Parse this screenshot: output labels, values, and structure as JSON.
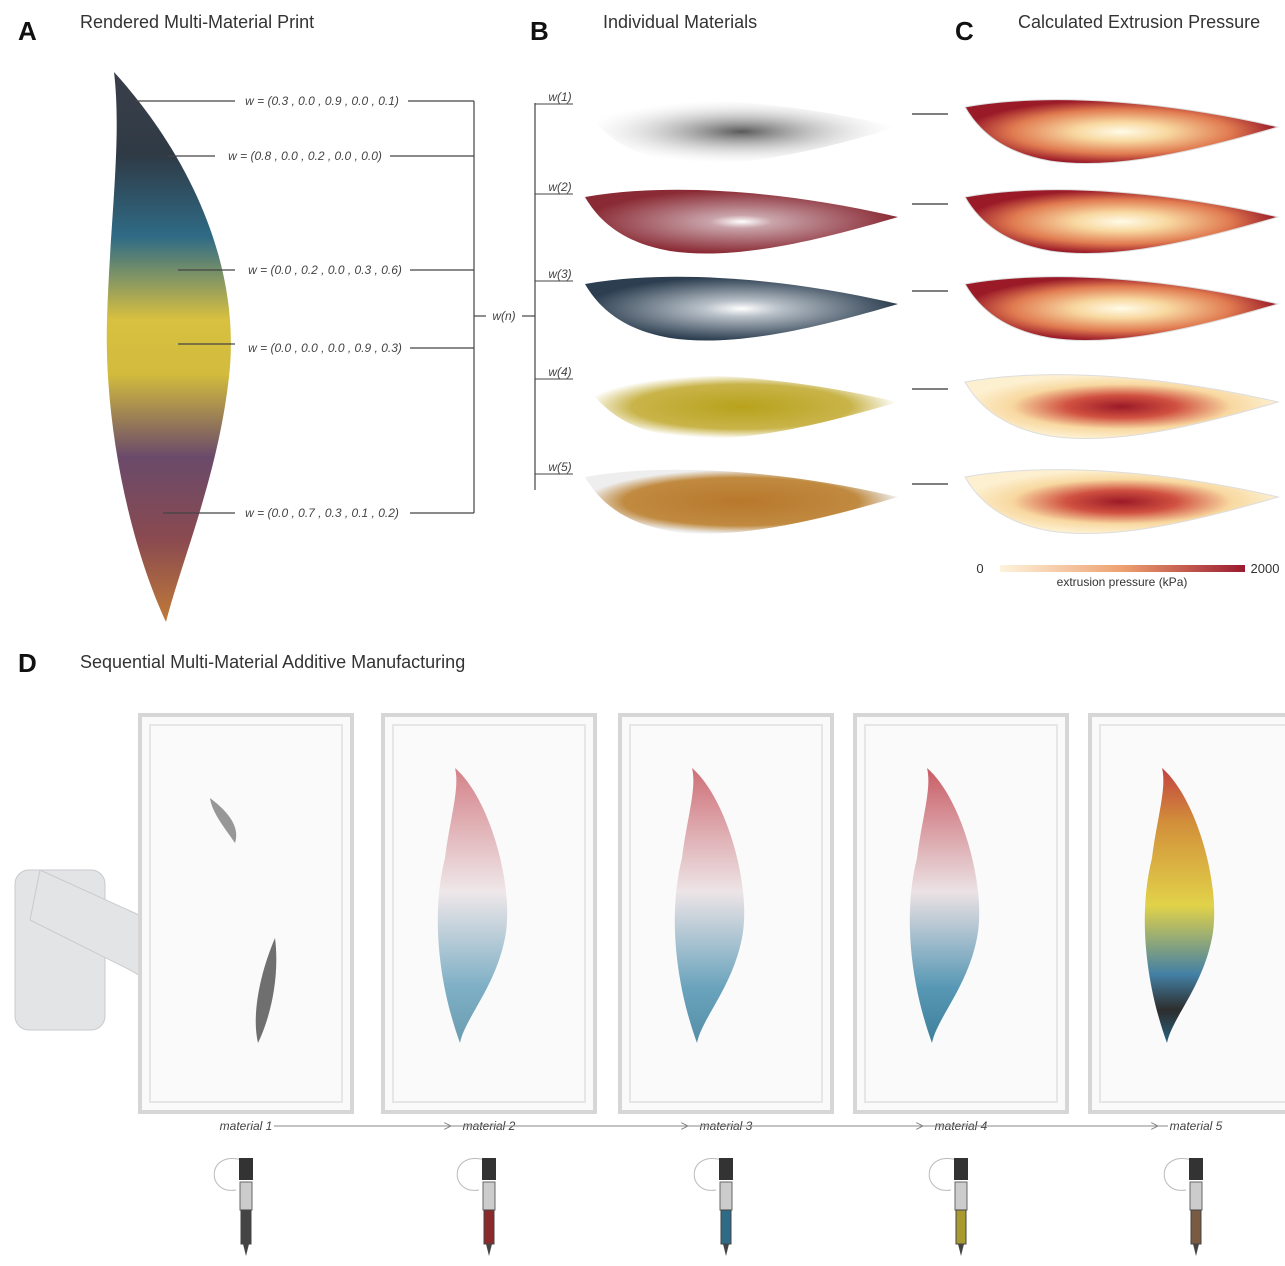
{
  "panels": [
    {
      "letter": "A",
      "title": "Rendered Multi-Material Print"
    },
    {
      "letter": "B",
      "title": "Individual Materials"
    },
    {
      "letter": "C",
      "title": "Calculated Extrusion Pressure"
    },
    {
      "letter": "D",
      "title": "Sequential Multi-Material Additive Manufacturing"
    }
  ],
  "panel_a": {
    "weights": [
      "w = (0.3 , 0.0 , 0.9 , 0.0 , 0.1)",
      "w = (0.8 , 0.0 , 0.2 , 0.0 , 0.0)",
      "w = (0.0 , 0.2 , 0.0 , 0.3 , 0.6)",
      "w = (0.0 , 0.0 , 0.0 , 0.9 , 0.3)",
      "w = (0.0 , 0.7 , 0.3 , 0.1 , 0.2)"
    ],
    "node": "w(n)"
  },
  "panel_b": {
    "labels": [
      "w(1)",
      "w(2)",
      "w(3)",
      "w(4)",
      "w(5)"
    ]
  },
  "panel_c": {
    "scale_min": 0,
    "scale_max": 2000,
    "scale_label": "extrusion pressure (kPa)"
  },
  "panel_d": {
    "materials": [
      "material 1",
      "material 2",
      "material 3",
      "material 4",
      "material 5"
    ]
  }
}
